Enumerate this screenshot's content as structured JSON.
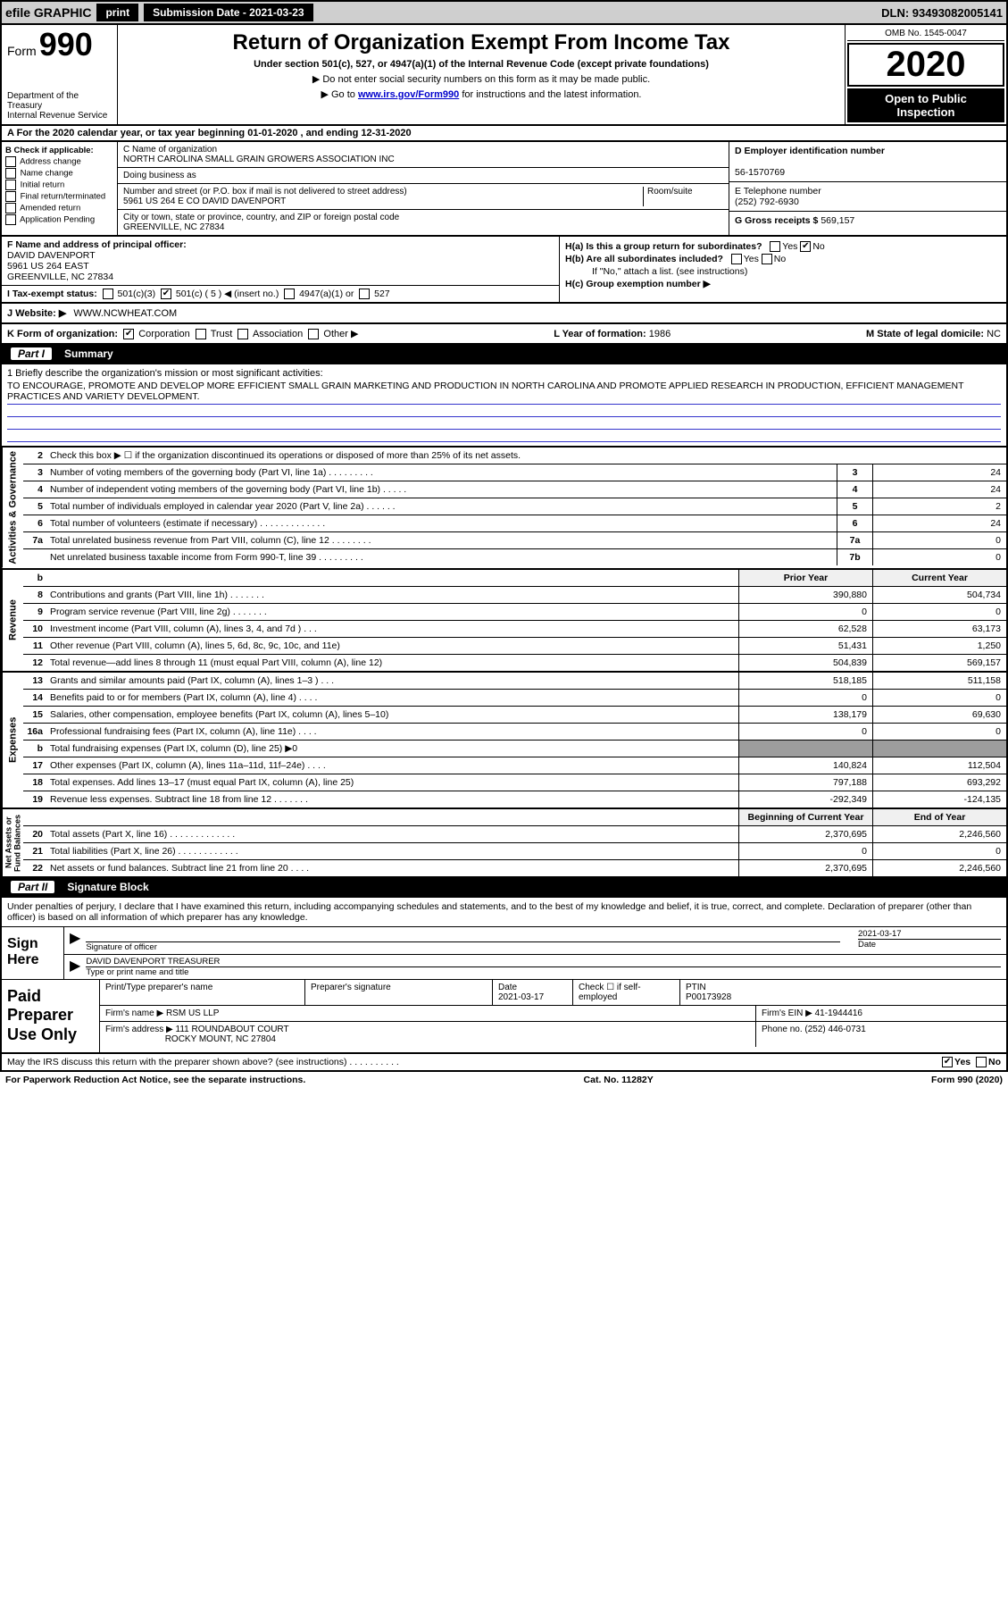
{
  "topbar": {
    "efile": "efile GRAPHIC",
    "print": "print",
    "subdate_label": "Submission Date - 2021-03-23",
    "dln": "DLN: 93493082005141"
  },
  "header": {
    "form_prefix": "Form",
    "form_no": "990",
    "dept": "Department of the Treasury\nInternal Revenue Service",
    "title": "Return of Organization Exempt From Income Tax",
    "sub1": "Under section 501(c), 527, or 4947(a)(1) of the Internal Revenue Code (except private foundations)",
    "sub2": "▶ Do not enter social security numbers on this form as it may be made public.",
    "sub3_pre": "▶ Go to ",
    "sub3_link": "www.irs.gov/Form990",
    "sub3_post": " for instructions and the latest information.",
    "omb": "OMB No. 1545-0047",
    "year": "2020",
    "openpub": "Open to Public\nInspection"
  },
  "line_a": "A For the 2020 calendar year, or tax year beginning 01-01-2020    , and ending 12-31-2020",
  "col_b": {
    "hdr": "B Check if applicable:",
    "opts": [
      "Address change",
      "Name change",
      "Initial return",
      "Final return/terminated",
      "Amended return",
      "Application Pending"
    ]
  },
  "col_c": {
    "name_lbl": "C Name of organization",
    "name": "NORTH CAROLINA SMALL GRAIN GROWERS ASSOCIATION INC",
    "dba_lbl": "Doing business as",
    "addr_lbl": "Number and street (or P.O. box if mail is not delivered to street address)",
    "room_lbl": "Room/suite",
    "addr": "5961 US 264 E CO DAVID DAVENPORT",
    "city_lbl": "City or town, state or province, country, and ZIP or foreign postal code",
    "city": "GREENVILLE, NC  27834"
  },
  "col_d": {
    "ein_lbl": "D Employer identification number",
    "ein": "56-1570769",
    "tel_lbl": "E Telephone number",
    "tel": "(252) 792-6930",
    "gross_lbl": "G Gross receipts $",
    "gross": "569,157"
  },
  "f": {
    "lbl": "F  Name and address of principal officer:",
    "name": "DAVID DAVENPORT",
    "addr1": "5961 US 264 EAST",
    "addr2": "GREENVILLE, NC  27834"
  },
  "h": {
    "ha": "H(a)  Is this a group return for subordinates?",
    "hb": "H(b)  Are all subordinates included?",
    "hb_note": "If \"No,\" attach a list. (see instructions)",
    "hc": "H(c)  Group exemption number ▶"
  },
  "i": {
    "lbl": "I   Tax-exempt status:",
    "insert": "501(c) ( 5 ) ◀ (insert no.)"
  },
  "j": {
    "lbl": "J   Website: ▶",
    "val": "WWW.NCWHEAT.COM"
  },
  "k": {
    "lbl": "K Form of organization:",
    "corp": "Corporation",
    "trust": "Trust",
    "assoc": "Association",
    "other": "Other ▶"
  },
  "l": {
    "lbl": "L Year of formation:",
    "val": "1986"
  },
  "m": {
    "lbl": "M State of legal domicile:",
    "val": "NC"
  },
  "part1": {
    "num": "Part I",
    "title": "Summary"
  },
  "mission": {
    "lbl": "1  Briefly describe the organization's mission or most significant activities:",
    "text": "TO ENCOURAGE, PROMOTE AND DEVELOP MORE EFFICIENT SMALL GRAIN MARKETING AND PRODUCTION IN NORTH CAROLINA AND PROMOTE APPLIED RESEARCH IN PRODUCTION, EFFICIENT MANAGEMENT PRACTICES AND VARIETY DEVELOPMENT."
  },
  "gov": {
    "l2": "Check this box ▶ ☐  if the organization discontinued its operations or disposed of more than 25% of its net assets.",
    "rows": [
      {
        "n": "3",
        "d": "Number of voting members of the governing body (Part VI, line 1a)   .   .   .   .   .   .   .   .   .",
        "b": "3",
        "v": "24"
      },
      {
        "n": "4",
        "d": "Number of independent voting members of the governing body (Part VI, line 1b)   .   .   .   .   .",
        "b": "4",
        "v": "24"
      },
      {
        "n": "5",
        "d": "Total number of individuals employed in calendar year 2020 (Part V, line 2a)   .   .   .   .   .   .",
        "b": "5",
        "v": "2"
      },
      {
        "n": "6",
        "d": "Total number of volunteers (estimate if necessary)   .   .   .   .   .   .   .   .   .   .   .   .   .",
        "b": "6",
        "v": "24"
      },
      {
        "n": "7a",
        "d": "Total unrelated business revenue from Part VIII, column (C), line 12   .   .   .   .   .   .   .   .",
        "b": "7a",
        "v": "0"
      },
      {
        "n": "",
        "d": "Net unrelated business taxable income from Form 990-T, line 39   .   .   .   .   .   .   .   .   .",
        "b": "7b",
        "v": "0"
      }
    ]
  },
  "rev": {
    "tab": "Revenue",
    "hdr_b": "b",
    "hdr_py": "Prior Year",
    "hdr_cy": "Current Year",
    "rows": [
      {
        "n": "8",
        "d": "Contributions and grants (Part VIII, line 1h)   .   .   .   .   .   .   .",
        "py": "390,880",
        "cy": "504,734"
      },
      {
        "n": "9",
        "d": "Program service revenue (Part VIII, line 2g)   .   .   .   .   .   .   .",
        "py": "0",
        "cy": "0"
      },
      {
        "n": "10",
        "d": "Investment income (Part VIII, column (A), lines 3, 4, and 7d )   .   .   .",
        "py": "62,528",
        "cy": "63,173"
      },
      {
        "n": "11",
        "d": "Other revenue (Part VIII, column (A), lines 5, 6d, 8c, 9c, 10c, and 11e)",
        "py": "51,431",
        "cy": "1,250"
      },
      {
        "n": "12",
        "d": "Total revenue—add lines 8 through 11 (must equal Part VIII, column (A), line 12)",
        "py": "504,839",
        "cy": "569,157"
      }
    ]
  },
  "exp": {
    "tab": "Expenses",
    "rows": [
      {
        "n": "13",
        "d": "Grants and similar amounts paid (Part IX, column (A), lines 1–3 )   .   .   .",
        "py": "518,185",
        "cy": "511,158"
      },
      {
        "n": "14",
        "d": "Benefits paid to or for members (Part IX, column (A), line 4)   .   .   .   .",
        "py": "0",
        "cy": "0"
      },
      {
        "n": "15",
        "d": "Salaries, other compensation, employee benefits (Part IX, column (A), lines 5–10)",
        "py": "138,179",
        "cy": "69,630"
      },
      {
        "n": "16a",
        "d": "Professional fundraising fees (Part IX, column (A), line 11e)   .   .   .   .",
        "py": "0",
        "cy": "0"
      },
      {
        "n": "b",
        "d": "Total fundraising expenses (Part IX, column (D), line 25) ▶0",
        "py": "",
        "cy": "",
        "shade": true
      },
      {
        "n": "17",
        "d": "Other expenses (Part IX, column (A), lines 11a–11d, 11f–24e)   .   .   .   .",
        "py": "140,824",
        "cy": "112,504"
      },
      {
        "n": "18",
        "d": "Total expenses. Add lines 13–17 (must equal Part IX, column (A), line 25)",
        "py": "797,188",
        "cy": "693,292"
      },
      {
        "n": "19",
        "d": "Revenue less expenses. Subtract line 18 from line 12   .   .   .   .   .   .   .",
        "py": "-292,349",
        "cy": "-124,135"
      }
    ]
  },
  "net": {
    "tab": "Net Assets or\nFund Balances",
    "hdr_by": "Beginning of Current Year",
    "hdr_ey": "End of Year",
    "rows": [
      {
        "n": "20",
        "d": "Total assets (Part X, line 16)   .   .   .   .   .   .   .   .   .   .   .   .   .",
        "py": "2,370,695",
        "cy": "2,246,560"
      },
      {
        "n": "21",
        "d": "Total liabilities (Part X, line 26)   .   .   .   .   .   .   .   .   .   .   .   .",
        "py": "0",
        "cy": "0"
      },
      {
        "n": "22",
        "d": "Net assets or fund balances. Subtract line 21 from line 20   .   .   .   .",
        "py": "2,370,695",
        "cy": "2,246,560"
      }
    ]
  },
  "part2": {
    "num": "Part II",
    "title": "Signature Block"
  },
  "sig": {
    "decl": "Under penalties of perjury, I declare that I have examined this return, including accompanying schedules and statements, and to the best of my knowledge and belief, it is true, correct, and complete. Declaration of preparer (other than officer) is based on all information of which preparer has any knowledge.",
    "here": "Sign Here",
    "sigof": "Signature of officer",
    "date_lbl": "Date",
    "date": "2021-03-17",
    "name": "DAVID DAVENPORT  TREASURER",
    "type_lbl": "Type or print name and title"
  },
  "prep": {
    "label": "Paid Preparer Use Only",
    "pt_name": "Print/Type preparer's name",
    "pt_sig": "Preparer's signature",
    "pt_date_lbl": "Date",
    "pt_date": "2021-03-17",
    "pt_selfemp": "Check ☐ if self-employed",
    "ptin_lbl": "PTIN",
    "ptin": "P00173928",
    "firm_name_lbl": "Firm's name    ▶",
    "firm_name": "RSM US LLP",
    "firm_ein_lbl": "Firm's EIN ▶",
    "firm_ein": "41-1944416",
    "firm_addr_lbl": "Firm's address ▶",
    "firm_addr1": "111 ROUNDABOUT COURT",
    "firm_addr2": "ROCKY MOUNT, NC  27804",
    "phone_lbl": "Phone no.",
    "phone": "(252) 446-0731"
  },
  "footer": {
    "discuss": "May the IRS discuss this return with the preparer shown above? (see instructions)   .   .   .   .   .   .   .   .   .   .",
    "yes": "Yes",
    "no": "No",
    "paperwork": "For Paperwork Reduction Act Notice, see the separate instructions.",
    "cat": "Cat. No. 11282Y",
    "form": "Form 990 (2020)"
  }
}
